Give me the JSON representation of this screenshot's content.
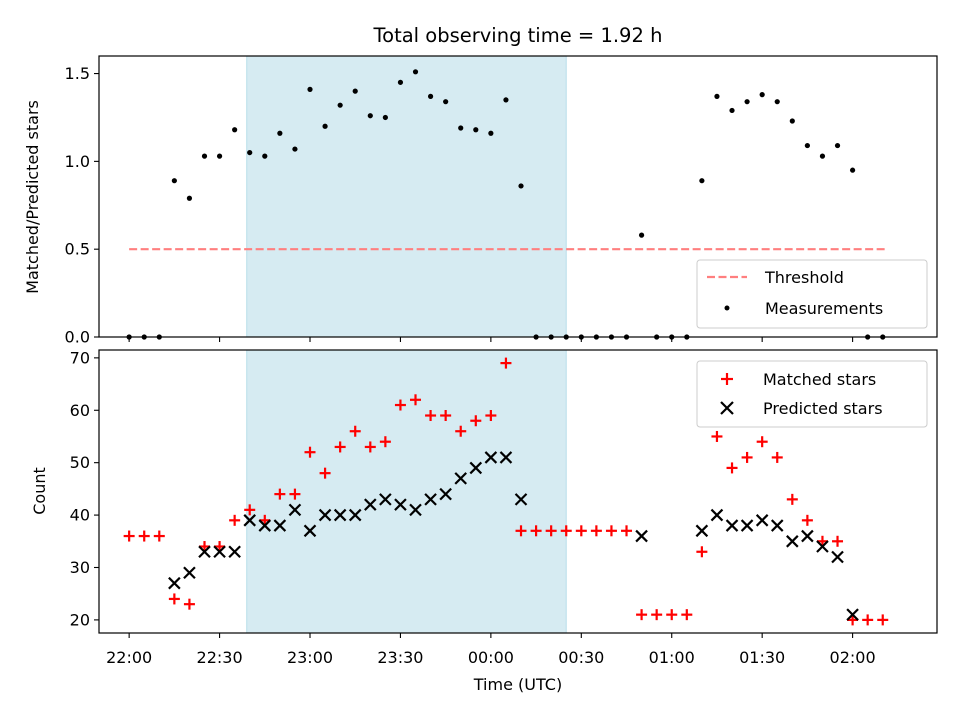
{
  "chart_data": [
    {
      "type": "scatter",
      "title": "Total observing time = 1.92 h",
      "ylabel": "Matched/Predicted stars",
      "xlabel": "",
      "ylim": [
        0,
        1.6
      ],
      "yticks": [
        0.0,
        0.5,
        1.0,
        1.5
      ],
      "ytick_labels": [
        "0.0",
        "0.5",
        "1.0",
        "1.5"
      ],
      "x_range_minutes": [
        -5,
        134
      ],
      "observing_window_minutes": [
        19.5,
        72.5
      ],
      "threshold": {
        "name": "Threshold",
        "y": 0.5,
        "x_start": 0,
        "x_end": 125.5,
        "color": "#ff7f7f"
      },
      "series": [
        {
          "name": "Measurements",
          "color": "#000000",
          "x": [
            0,
            2.5,
            5,
            7.5,
            10,
            12.5,
            15,
            17.5,
            20,
            22.5,
            25,
            27.5,
            30,
            32.5,
            35,
            37.5,
            40,
            42.5,
            45,
            47.5,
            50,
            52.5,
            55,
            57.5,
            60,
            62.5,
            65,
            67.5,
            70,
            72.5,
            75,
            77.5,
            80,
            82.5,
            85,
            87.5,
            90,
            92.5,
            95,
            97.5,
            100,
            102.5,
            105,
            107.5,
            110,
            112.5,
            115,
            117.5,
            120,
            122.5,
            125
          ],
          "y": [
            0,
            0,
            0,
            0.89,
            0.79,
            1.03,
            1.03,
            1.18,
            1.05,
            1.03,
            1.16,
            1.07,
            1.41,
            1.2,
            1.32,
            1.4,
            1.26,
            1.25,
            1.45,
            1.51,
            1.37,
            1.34,
            1.19,
            1.18,
            1.16,
            1.35,
            0.86,
            0,
            0,
            0,
            0,
            0,
            0,
            0,
            0.58,
            0,
            0,
            0,
            0.89,
            1.37,
            1.29,
            1.34,
            1.38,
            1.34,
            1.23,
            1.09,
            1.03,
            1.09,
            0.95,
            0,
            0
          ]
        }
      ]
    },
    {
      "type": "scatter",
      "title": "",
      "xlabel": "Time (UTC)",
      "ylabel": "Count",
      "ylim": [
        17.5,
        71.5
      ],
      "yticks": [
        20,
        30,
        40,
        50,
        60,
        70
      ],
      "ytick_labels": [
        "20",
        "30",
        "40",
        "50",
        "60",
        "70"
      ],
      "x_range_minutes": [
        -5,
        134
      ],
      "xticks_minutes": [
        0,
        15,
        30,
        45,
        60,
        75,
        90,
        105,
        120
      ],
      "xtick_labels": [
        "22:00",
        "22:30",
        "23:00",
        "23:30",
        "00:00",
        "00:30",
        "01:00",
        "01:30",
        "02:00"
      ],
      "observing_window_minutes": [
        19.5,
        72.5
      ],
      "series": [
        {
          "name": "Matched stars",
          "color": "#ff0000",
          "marker": "plus",
          "x": [
            0,
            2.5,
            5,
            7.5,
            10,
            12.5,
            15,
            17.5,
            20,
            22.5,
            25,
            27.5,
            30,
            32.5,
            35,
            37.5,
            40,
            42.5,
            45,
            47.5,
            50,
            52.5,
            55,
            57.5,
            60,
            62.5,
            65,
            67.5,
            70,
            72.5,
            75,
            77.5,
            80,
            82.5,
            85,
            87.5,
            90,
            92.5,
            95,
            97.5,
            100,
            102.5,
            105,
            107.5,
            110,
            112.5,
            115,
            117.5,
            120,
            122.5,
            125
          ],
          "y": [
            36,
            36,
            36,
            24,
            23,
            34,
            34,
            39,
            41,
            39,
            44,
            44,
            52,
            48,
            53,
            56,
            53,
            54,
            61,
            62,
            59,
            59,
            56,
            58,
            59,
            69,
            37,
            37,
            37,
            37,
            37,
            37,
            37,
            37,
            21,
            21,
            21,
            21,
            33,
            55,
            49,
            51,
            54,
            51,
            43,
            39,
            35,
            35,
            20,
            20,
            20
          ]
        },
        {
          "name": "Predicted stars",
          "color": "#000000",
          "marker": "x",
          "x": [
            7.5,
            10,
            12.5,
            15,
            17.5,
            20,
            22.5,
            25,
            27.5,
            30,
            32.5,
            35,
            37.5,
            40,
            42.5,
            45,
            47.5,
            50,
            52.5,
            55,
            57.5,
            60,
            62.5,
            65,
            85,
            95,
            97.5,
            100,
            102.5,
            105,
            107.5,
            110,
            112.5,
            115,
            117.5,
            120
          ],
          "y": [
            27,
            29,
            33,
            33,
            33,
            39,
            38,
            38,
            41,
            37,
            40,
            40,
            40,
            42,
            43,
            42,
            41,
            43,
            44,
            47,
            49,
            51,
            51,
            43,
            36,
            37,
            40,
            38,
            38,
            39,
            38,
            35,
            36,
            34,
            32,
            21
          ]
        }
      ]
    }
  ]
}
